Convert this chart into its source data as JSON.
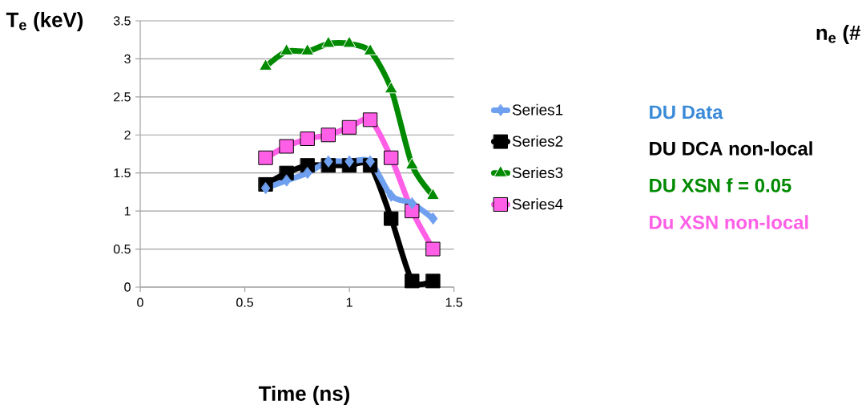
{
  "chart_data": {
    "type": "line",
    "xlabel": "Time (ns)",
    "ylabel": "T$_{e}$ (keV)",
    "x": [
      0.6,
      0.7,
      0.8,
      0.9,
      1.0,
      1.1,
      1.2,
      1.3,
      1.4
    ],
    "series": [
      {
        "name": "Series1",
        "color": "#6fa0f0",
        "marker": "diamond",
        "values": [
          1.3,
          1.4,
          1.5,
          1.65,
          1.65,
          1.65,
          1.2,
          1.1,
          0.9
        ]
      },
      {
        "name": "Series2",
        "color": "#000000",
        "marker": "square",
        "values": [
          1.35,
          1.5,
          1.6,
          1.6,
          1.6,
          1.6,
          0.9,
          0.08,
          0.08
        ]
      },
      {
        "name": "Series3",
        "color": "#008a00",
        "marker": "triangle",
        "values": [
          2.9,
          3.1,
          3.1,
          3.2,
          3.2,
          3.1,
          2.6,
          1.6,
          1.2
        ]
      },
      {
        "name": "Series4",
        "color": "#ff5ee6",
        "marker": "square",
        "values": [
          1.7,
          1.85,
          1.95,
          2.0,
          2.1,
          2.2,
          1.7,
          1.0,
          0.5
        ]
      }
    ],
    "annotations": [
      "DU Data",
      "DU DCA non-local",
      "DU XSN f = 0.05",
      "Du XSN non-local",
      "n$_{e}$ (#"
    ],
    "xlim": [
      0,
      1.5
    ],
    "xticks": [
      0,
      0.5,
      1,
      1.5
    ],
    "ylim": [
      0,
      3.5
    ],
    "yticks": [
      0,
      0.5,
      1,
      1.5,
      2,
      2.5,
      3,
      3.5
    ],
    "grid": "y",
    "legend": "right",
    "line_style": "solid"
  }
}
